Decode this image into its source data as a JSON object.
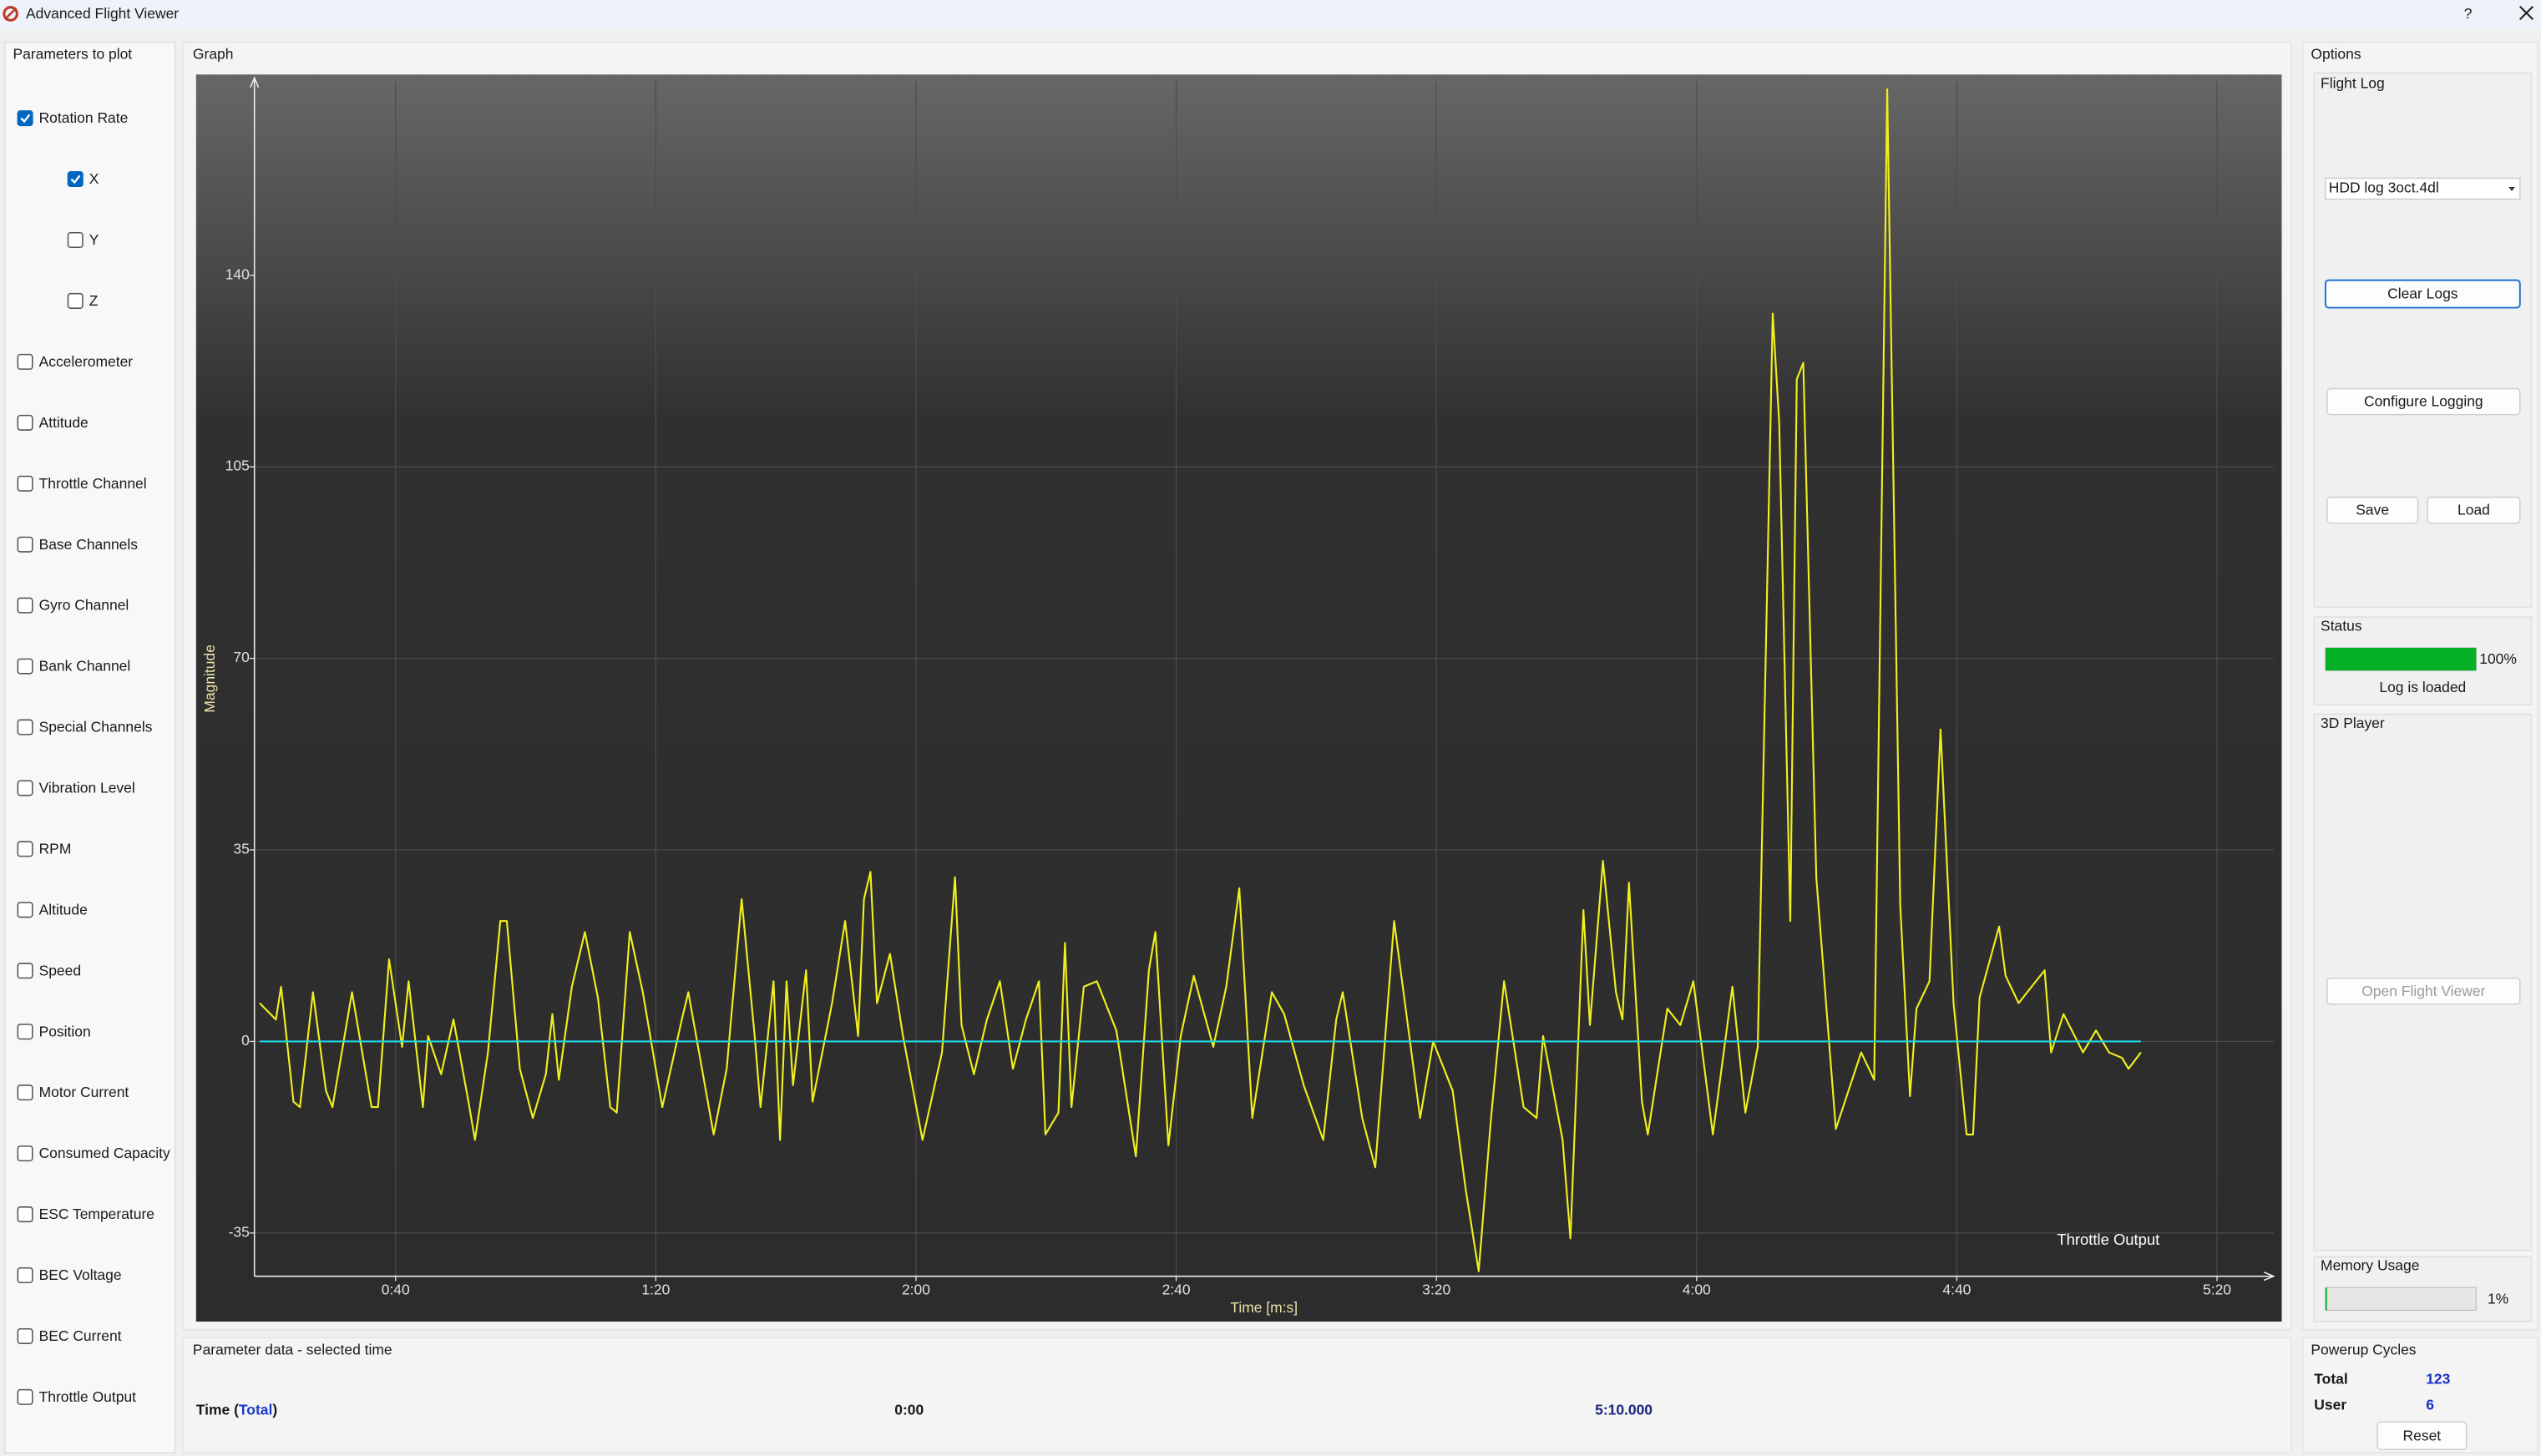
{
  "window": {
    "title": "Advanced Flight Viewer",
    "help": "?"
  },
  "parameters": {
    "title": "Parameters to plot",
    "items": [
      {
        "label": "Rotation Rate",
        "checked": true,
        "children": [
          {
            "label": "X",
            "checked": true
          },
          {
            "label": "Y",
            "checked": false
          },
          {
            "label": "Z",
            "checked": false
          }
        ]
      },
      {
        "label": "Accelerometer",
        "checked": false
      },
      {
        "label": "Attitude",
        "checked": false
      },
      {
        "label": "Throttle Channel",
        "checked": false
      },
      {
        "label": "Base Channels",
        "checked": false
      },
      {
        "label": "Gyro Channel",
        "checked": false
      },
      {
        "label": "Bank Channel",
        "checked": false
      },
      {
        "label": "Special Channels",
        "checked": false
      },
      {
        "label": "Vibration Level",
        "checked": false
      },
      {
        "label": "RPM",
        "checked": false
      },
      {
        "label": "Altitude",
        "checked": false
      },
      {
        "label": "Speed",
        "checked": false
      },
      {
        "label": "Position",
        "checked": false
      },
      {
        "label": "Motor Current",
        "checked": false
      },
      {
        "label": "Consumed Capacity",
        "checked": false
      },
      {
        "label": "ESC Temperature",
        "checked": false
      },
      {
        "label": "BEC Voltage",
        "checked": false
      },
      {
        "label": "BEC Current",
        "checked": false
      },
      {
        "label": "Throttle Output",
        "checked": false
      }
    ]
  },
  "graph_title": "Graph",
  "chart_data": {
    "type": "line",
    "xlabel": "Time [m:s]",
    "ylabel": "Magnitude",
    "annotation": "Throttle Output",
    "xlim": [
      18.3,
      328.7
    ],
    "ylim": [
      -42.9,
      175.5
    ],
    "xticks": [
      {
        "value": 40,
        "label": "0:40"
      },
      {
        "value": 80,
        "label": "1:20"
      },
      {
        "value": 120,
        "label": "2:00"
      },
      {
        "value": 160,
        "label": "2:40"
      },
      {
        "value": 200,
        "label": "3:20"
      },
      {
        "value": 240,
        "label": "4:00"
      },
      {
        "value": 280,
        "label": "4:40"
      },
      {
        "value": 320,
        "label": "5:20"
      }
    ],
    "yticks": [
      -35,
      0,
      35,
      70,
      105,
      140
    ],
    "grid": true,
    "series": [
      {
        "color": "#f0f01e",
        "x": [
          19.1,
          21.6,
          22.4,
          24.3,
          25.3,
          27.3,
          29.3,
          30.3,
          33.3,
          36.3,
          37.3,
          39.0,
          41.0,
          42.0,
          44.2,
          45.0,
          47.0,
          48.9,
          51.2,
          52.2,
          54.2,
          56.1,
          57.1,
          59.1,
          61.1,
          63.1,
          64.1,
          65.1,
          67.1,
          69.1,
          71.1,
          73.0,
          74.0,
          76.0,
          78.0,
          81.0,
          84.0,
          85.0,
          88.9,
          90.9,
          93.2,
          95.2,
          96.1,
          98.1,
          99.1,
          100.1,
          101.1,
          103.1,
          104.1,
          107.1,
          109.1,
          111.1,
          112.0,
          113.0,
          114.0,
          116.0,
          118.0,
          121.0,
          124.0,
          126.0,
          127.0,
          128.9,
          130.9,
          132.9,
          134.9,
          136.9,
          138.9,
          139.9,
          141.9,
          142.9,
          143.9,
          145.8,
          147.8,
          150.8,
          153.8,
          155.8,
          156.8,
          158.8,
          160.7,
          162.7,
          165.7,
          167.7,
          169.7,
          171.7,
          174.7,
          176.6,
          179.6,
          182.6,
          184.6,
          185.6,
          188.6,
          190.6,
          193.5,
          195.5,
          197.5,
          199.5,
          202.5,
          204.5,
          206.5,
          208.4,
          210.4,
          213.4,
          215.4,
          216.4,
          219.4,
          220.6,
          222.6,
          223.6,
          225.6,
          227.6,
          228.6,
          229.6,
          231.6,
          232.5,
          235.5,
          237.5,
          239.5,
          242.5,
          245.5,
          247.5,
          249.4,
          251.7,
          252.7,
          254.4,
          255.4,
          256.4,
          258.4,
          261.4,
          265.3,
          267.3,
          269.3,
          271.3,
          272.8,
          273.8,
          275.8,
          277.5,
          279.5,
          281.5,
          282.5,
          283.5,
          286.5,
          287.5,
          289.5,
          291.5,
          293.5,
          294.5,
          296.4,
          299.4,
          301.4,
          303.4,
          305.4,
          306.4,
          308.3
        ],
        "values": [
          7,
          4,
          10,
          -11,
          -12,
          9,
          -9,
          -12,
          9,
          -12,
          -12,
          15,
          -1,
          11,
          -12,
          1,
          -6,
          4,
          -11,
          -18,
          -2,
          22,
          22,
          -5,
          -14,
          -6,
          5,
          -7,
          10,
          20,
          8,
          -12,
          -13,
          20,
          9,
          -12,
          4,
          9,
          -17,
          -5,
          26,
          1,
          -12,
          11,
          -18,
          11,
          -8,
          13,
          -11,
          7,
          22,
          1,
          26,
          31,
          7,
          16,
          1,
          -18,
          -2,
          30,
          3,
          -6,
          4,
          11,
          -5,
          4,
          11,
          -17,
          -13,
          18,
          -12,
          10,
          11,
          2,
          -21,
          13,
          20,
          -19,
          1,
          12,
          -1,
          10,
          28,
          -14,
          9,
          5,
          -8,
          -18,
          4,
          9,
          -14,
          -23,
          22,
          4,
          -14,
          0,
          -9,
          -27,
          -42,
          -14,
          11,
          -12,
          -14,
          1,
          -18,
          -36,
          24,
          3,
          33,
          9,
          4,
          29,
          -11,
          -17,
          6,
          3,
          11,
          -17,
          10,
          -13,
          -1,
          133,
          113,
          22,
          121,
          124,
          30,
          -16,
          -2,
          -7,
          174,
          25,
          -10,
          6,
          11,
          57,
          7,
          -17,
          -17,
          8,
          21,
          12,
          7,
          10,
          13,
          -2,
          5,
          -2,
          2,
          -2,
          -3,
          -5,
          -2
        ]
      },
      {
        "color": "#1ed7e6",
        "x": [
          19.1,
          308.3
        ],
        "values": [
          0,
          0
        ]
      }
    ]
  },
  "param_data": {
    "title": "Parameter data - selected time",
    "label_start": "Time (",
    "label_em": "Total",
    "label_end": ")",
    "start": "0:00",
    "end": "5:10.000"
  },
  "options": {
    "title": "Options",
    "flight_log": {
      "title": "Flight Log",
      "selected": "HDD log 3oct.4dl",
      "clear": "Clear Logs",
      "configure": "Configure Logging",
      "save": "Save",
      "load": "Load"
    },
    "status": {
      "title": "Status",
      "progress": 100,
      "progress_label": "100%",
      "message": "Log is loaded"
    },
    "player": {
      "title": "3D Player",
      "open": "Open Flight Viewer"
    },
    "memory": {
      "title": "Memory Usage",
      "value": 1,
      "value_label": "1%"
    }
  },
  "powerup": {
    "title": "Powerup Cycles",
    "rows": [
      {
        "label": "Total",
        "value": 123
      },
      {
        "label": "User",
        "value": 6
      }
    ],
    "reset": "Reset"
  }
}
